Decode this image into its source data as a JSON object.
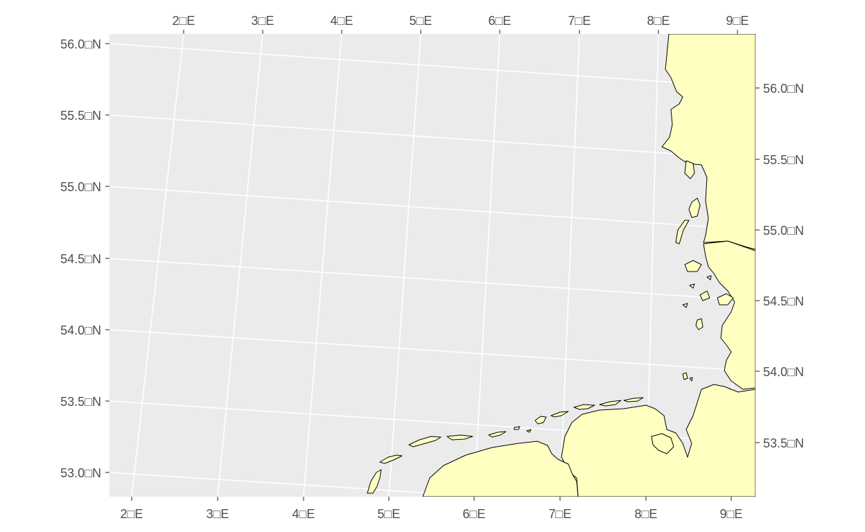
{
  "map": {
    "type": "coastline-map",
    "region": "German Bight / North Sea",
    "colors": {
      "panel_background": "#ebebeb",
      "grid": "#ffffff",
      "land_fill": "#ffffc2",
      "coastline": "#000000",
      "tick_text": "#4d4d4d"
    },
    "axes": {
      "bottom_lon_labels": [
        "2□E",
        "3□E",
        "4□E",
        "5□E",
        "6□E",
        "7□E",
        "8□E",
        "9□E"
      ],
      "top_lon_labels": [
        "2□E",
        "3□E",
        "4□E",
        "5□E",
        "6□E",
        "7□E",
        "8□E",
        "9□E"
      ],
      "left_lat_labels": [
        "56.0□N",
        "55.5□N",
        "55.0□N",
        "54.5□N",
        "54.0□N",
        "53.5□N",
        "53.0□N"
      ],
      "right_lat_labels": [
        "56.0□N",
        "55.5□N",
        "55.0□N",
        "54.5□N",
        "54.0□N",
        "53.5□N"
      ]
    },
    "graticule": "rotated projection grid, lines every 1° longitude and 0.5° latitude"
  }
}
